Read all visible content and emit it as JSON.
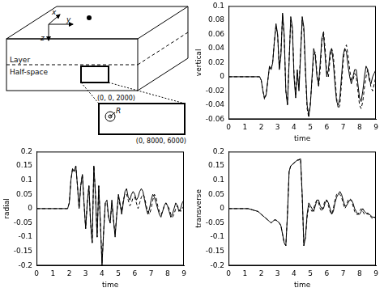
{
  "diagram": {
    "x": "x",
    "y": "y",
    "z": "z",
    "layer": "Layer",
    "half_space": "Half-space",
    "corner_top": "(0, 0, 2000)",
    "radius": "R",
    "corner_bottom": "(0, 8000, 6000)"
  },
  "chart_data": [
    {
      "type": "line",
      "ylabel": "vertical",
      "xlabel": "time",
      "grid": false,
      "xlim": [
        0,
        9
      ],
      "xticks": [
        0,
        1,
        2,
        3,
        4,
        5,
        6,
        7,
        8,
        9
      ],
      "ylim": [
        -0.06,
        0.1
      ],
      "yticks": [
        -0.06,
        -0.04,
        -0.02,
        0,
        0.02,
        0.04,
        0.06,
        0.08,
        0.1
      ],
      "x": [
        0,
        1.8,
        1.9,
        2,
        2.1,
        2.2,
        2.3,
        2.4,
        2.5,
        2.6,
        2.7,
        2.8,
        2.9,
        3,
        3.1,
        3.2,
        3.3,
        3.4,
        3.5,
        3.6,
        3.7,
        3.8,
        3.9,
        4,
        4.1,
        4.2,
        4.3,
        4.4,
        4.5,
        4.6,
        4.7,
        4.8,
        4.9,
        5,
        5.1,
        5.2,
        5.3,
        5.4,
        5.5,
        5.6,
        5.7,
        5.8,
        5.9,
        6,
        6.1,
        6.2,
        6.3,
        6.4,
        6.5,
        6.6,
        6.7,
        6.8,
        6.9,
        7,
        7.1,
        7.2,
        7.3,
        7.4,
        7.5,
        7.6,
        7.7,
        7.8,
        7.9,
        8,
        8.1,
        8.2,
        8.3,
        8.4,
        8.5,
        8.6,
        8.7,
        8.8,
        8.9,
        9
      ],
      "series": [
        {
          "color": "#000000",
          "line_style": "solid",
          "values": [
            0,
            0,
            0,
            -0.005,
            -0.02,
            -0.03,
            -0.025,
            -0.005,
            0.015,
            0.01,
            0.02,
            0.05,
            0.075,
            0.06,
            0.01,
            0.03,
            0.09,
            0.06,
            -0.02,
            -0.04,
            0.02,
            0.085,
            0.07,
            0,
            -0.03,
            0.01,
            -0.02,
            0.03,
            0.085,
            0.07,
            0.01,
            -0.04,
            -0.055,
            -0.04,
            0,
            0.04,
            0.03,
            0,
            -0.01,
            0.02,
            0.055,
            0.06,
            0.03,
            0,
            0.01,
            0.035,
            0.04,
            0.02,
            -0.01,
            -0.035,
            -0.04,
            -0.03,
            0,
            0.03,
            0.04,
            0.035,
            0.015,
            0,
            -0.01,
            0,
            0.01,
            0.01,
            -0.01,
            -0.03,
            -0.035,
            -0.02,
            0,
            0.015,
            0.01,
            -0.005,
            -0.01,
            0,
            0.005,
            0.01
          ]
        },
        {
          "color": "#000000",
          "line_style": "dashed",
          "values": [
            0,
            0,
            0,
            -0.005,
            -0.02,
            -0.032,
            -0.025,
            -0.005,
            0.013,
            0.01,
            0.022,
            0.05,
            0.072,
            0.058,
            0.012,
            0.035,
            0.088,
            0.055,
            -0.02,
            -0.038,
            0.025,
            0.08,
            0.065,
            0.005,
            -0.025,
            0.005,
            -0.015,
            0.035,
            0.08,
            0.065,
            0.005,
            -0.045,
            -0.058,
            -0.035,
            -0.005,
            0.03,
            0.035,
            0.005,
            -0.015,
            0.01,
            0.05,
            0.065,
            0.04,
            0.005,
            0,
            0.025,
            0.04,
            0.03,
            0,
            -0.03,
            -0.045,
            -0.04,
            -0.01,
            0.02,
            0.04,
            0.045,
            0.03,
            0.01,
            -0.005,
            -0.005,
            0.005,
            0,
            -0.02,
            -0.04,
            -0.045,
            -0.035,
            -0.015,
            0,
            0.01,
            0,
            -0.015,
            -0.02,
            -0.01,
            0
          ]
        }
      ]
    },
    {
      "type": "line",
      "ylabel": "radial",
      "xlabel": "time",
      "grid": false,
      "xlim": [
        0,
        9
      ],
      "xticks": [
        0,
        1,
        2,
        3,
        4,
        5,
        6,
        7,
        8,
        9
      ],
      "ylim": [
        -0.2,
        0.2
      ],
      "yticks": [
        -0.2,
        -0.15,
        -0.1,
        -0.05,
        0,
        0.05,
        0.1,
        0.15,
        0.2
      ],
      "x": [
        0,
        1.8,
        1.9,
        2,
        2.1,
        2.2,
        2.3,
        2.4,
        2.5,
        2.6,
        2.7,
        2.8,
        2.9,
        3,
        3.1,
        3.2,
        3.3,
        3.4,
        3.5,
        3.6,
        3.7,
        3.8,
        3.9,
        4,
        4.1,
        4.2,
        4.3,
        4.4,
        4.5,
        4.6,
        4.7,
        4.8,
        4.9,
        5,
        5.1,
        5.2,
        5.3,
        5.4,
        5.5,
        5.6,
        5.7,
        5.8,
        5.9,
        6,
        6.1,
        6.2,
        6.3,
        6.4,
        6.5,
        6.6,
        6.7,
        6.8,
        6.9,
        7,
        7.1,
        7.2,
        7.3,
        7.4,
        7.5,
        7.6,
        7.7,
        7.8,
        7.9,
        8,
        8.1,
        8.2,
        8.3,
        8.4,
        8.5,
        8.6,
        8.7,
        8.8,
        8.9,
        9
      ],
      "series": [
        {
          "color": "#000000",
          "line_style": "solid",
          "values": [
            0,
            0,
            0,
            0.02,
            0.1,
            0.14,
            0.13,
            0.15,
            0.08,
            0,
            0.08,
            0.12,
            0.02,
            -0.07,
            0.02,
            0.08,
            -0.05,
            -0.12,
            0.15,
            0.05,
            -0.1,
            0.08,
            -0.05,
            -0.2,
            -0.08,
            0.02,
            0.03,
            -0.03,
            -0.05,
            0.03,
            -0.04,
            -0.1,
            -0.02,
            0.05,
            0.02,
            -0.02,
            0.02,
            0.06,
            0.07,
            0.04,
            0.03,
            0.05,
            0.06,
            0.05,
            0.03,
            0.04,
            0.06,
            0.07,
            0.06,
            0.03,
            0,
            -0.02,
            0,
            0.03,
            0.05,
            0.04,
            0.02,
            0,
            -0.02,
            -0.03,
            -0.01,
            0.01,
            0.02,
            0.01,
            -0.01,
            -0.03,
            -0.02,
            0,
            0.02,
            0.01,
            -0.01,
            0,
            0.02,
            0.03
          ]
        },
        {
          "color": "#000000",
          "line_style": "dashed",
          "values": [
            0,
            0,
            0,
            0.02,
            0.1,
            0.14,
            0.13,
            0.15,
            0.08,
            0,
            0.08,
            0.12,
            0.02,
            -0.07,
            0.02,
            0.08,
            -0.05,
            -0.12,
            0.15,
            0.05,
            -0.1,
            0.08,
            -0.05,
            -0.19,
            -0.08,
            0.02,
            0.02,
            -0.03,
            -0.05,
            0.02,
            -0.04,
            -0.09,
            -0.02,
            0.04,
            0.01,
            -0.01,
            0.03,
            0.05,
            0.05,
            0.03,
            0.01,
            0.02,
            0.04,
            0.04,
            0.02,
            0,
            0.02,
            0.04,
            0.05,
            0.04,
            0.01,
            -0.01,
            -0.02,
            0,
            0.03,
            0.05,
            0.04,
            0.01,
            -0.01,
            -0.02,
            -0.01,
            0.01,
            0.02,
            0.01,
            0,
            -0.02,
            -0.03,
            -0.02,
            0,
            0.01,
            0,
            -0.01,
            0,
            0.01
          ]
        }
      ]
    },
    {
      "type": "line",
      "ylabel": "transverse",
      "xlabel": "time",
      "grid": false,
      "xlim": [
        0,
        9
      ],
      "xticks": [
        0,
        1,
        2,
        3,
        4,
        5,
        6,
        7,
        8,
        9
      ],
      "ylim": [
        -0.2,
        0.2
      ],
      "yticks": [
        -0.2,
        -0.15,
        -0.1,
        -0.05,
        0,
        0.05,
        0.1,
        0.15,
        0.2
      ],
      "x": [
        0,
        1.2,
        1.8,
        1.9,
        2,
        2.1,
        2.2,
        2.3,
        2.4,
        2.5,
        2.6,
        2.7,
        2.8,
        2.9,
        3,
        3.1,
        3.2,
        3.3,
        3.4,
        3.5,
        3.6,
        3.7,
        3.8,
        3.9,
        4,
        4.1,
        4.2,
        4.3,
        4.4,
        4.5,
        4.6,
        4.7,
        4.8,
        4.9,
        5,
        5.1,
        5.2,
        5.3,
        5.4,
        5.5,
        5.6,
        5.7,
        5.8,
        5.9,
        6,
        6.1,
        6.2,
        6.3,
        6.4,
        6.5,
        6.6,
        6.7,
        6.8,
        6.9,
        7,
        7.1,
        7.2,
        7.3,
        7.4,
        7.5,
        7.6,
        7.7,
        7.8,
        7.9,
        8,
        8.1,
        8.2,
        8.3,
        8.4,
        8.5,
        8.6,
        8.7,
        8.8,
        8.9,
        9
      ],
      "series": [
        {
          "color": "#000000",
          "line_style": "solid",
          "values": [
            0,
            0,
            -0.01,
            -0.015,
            -0.02,
            -0.025,
            -0.03,
            -0.035,
            -0.04,
            -0.045,
            -0.05,
            -0.045,
            -0.04,
            -0.04,
            -0.045,
            -0.05,
            -0.06,
            -0.09,
            -0.12,
            -0.13,
            -0.02,
            0.13,
            0.15,
            0.155,
            0.16,
            0.165,
            0.17,
            0.17,
            0.175,
            0.05,
            -0.13,
            -0.1,
            -0.02,
            0.02,
            0.01,
            0,
            -0.01,
            0.01,
            0.03,
            0.03,
            0.01,
            0,
            0,
            0.02,
            0.03,
            0.02,
            0,
            -0.02,
            -0.01,
            0.02,
            0.04,
            0.05,
            0.06,
            0.05,
            0.03,
            0.01,
            0.01,
            0.02,
            0.03,
            0.03,
            0.02,
            0,
            -0.01,
            -0.02,
            -0.02,
            -0.01,
            0,
            -0.01,
            -0.015,
            -0.02,
            -0.02,
            -0.025,
            -0.03,
            -0.03,
            -0.035
          ]
        },
        {
          "color": "#000000",
          "line_style": "dashed",
          "values": [
            0,
            0,
            -0.01,
            -0.015,
            -0.02,
            -0.025,
            -0.03,
            -0.035,
            -0.04,
            -0.045,
            -0.05,
            -0.045,
            -0.04,
            -0.04,
            -0.045,
            -0.05,
            -0.06,
            -0.09,
            -0.12,
            -0.13,
            -0.02,
            0.13,
            0.15,
            0.155,
            0.16,
            0.165,
            0.17,
            0.172,
            0.175,
            0.04,
            -0.13,
            -0.1,
            -0.03,
            0.01,
            0,
            -0.01,
            0,
            0.02,
            0.03,
            0.02,
            0,
            -0.01,
            0.01,
            0.03,
            0.03,
            0.01,
            -0.01,
            -0.02,
            0,
            0.03,
            0.05,
            0.055,
            0.05,
            0.04,
            0.02,
            0,
            0.01,
            0.03,
            0.035,
            0.03,
            0.01,
            -0.01,
            -0.02,
            -0.02,
            -0.01,
            0,
            -0.01,
            -0.02,
            -0.02,
            -0.015,
            -0.02,
            -0.03,
            -0.035,
            -0.03,
            -0.03
          ]
        }
      ]
    }
  ]
}
